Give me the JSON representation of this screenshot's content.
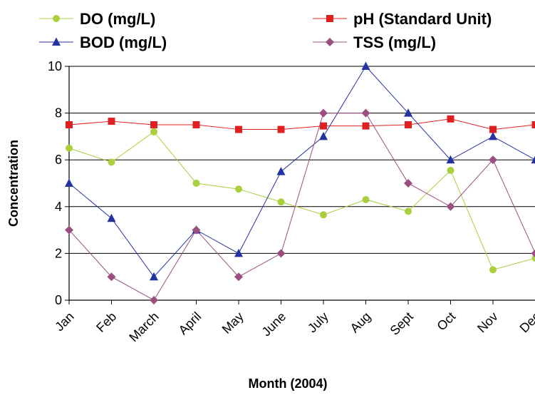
{
  "chart_data": {
    "type": "line",
    "xlabel": "Month (2004)",
    "ylabel": "Concentration",
    "ylim": [
      0,
      10
    ],
    "yticks": [
      0,
      2,
      4,
      6,
      8,
      10
    ],
    "grid": true,
    "legend_position": "top",
    "categories": [
      "Jan",
      "Feb",
      "March",
      "April",
      "May",
      "June",
      "July",
      "Aug",
      "Sept",
      "Oct",
      "Nov",
      "Dec"
    ],
    "series": [
      {
        "name": "DO (mg/L)",
        "color": "#a9cf3c",
        "marker": "circle",
        "values": [
          6.5,
          5.9,
          7.2,
          5.0,
          4.75,
          4.2,
          3.65,
          4.3,
          3.8,
          5.55,
          1.3,
          1.8
        ]
      },
      {
        "name": "pH (Standard Unit)",
        "color": "#e02020",
        "marker": "square",
        "values": [
          7.5,
          7.65,
          7.5,
          7.5,
          7.3,
          7.3,
          7.45,
          7.45,
          7.5,
          7.75,
          7.3,
          7.5
        ]
      },
      {
        "name": "BOD (mg/L)",
        "color": "#2433a0",
        "marker": "triangle",
        "values": [
          5.0,
          3.5,
          1.0,
          3.0,
          2.0,
          5.5,
          7.0,
          10.0,
          8.0,
          6.0,
          7.0,
          6.0
        ]
      },
      {
        "name": "TSS (mg/L)",
        "color": "#9a4f80",
        "marker": "diamond",
        "values": [
          3.0,
          1.0,
          0.0,
          3.0,
          1.0,
          2.0,
          8.0,
          8.0,
          5.0,
          4.0,
          6.0,
          2.0
        ]
      }
    ]
  }
}
